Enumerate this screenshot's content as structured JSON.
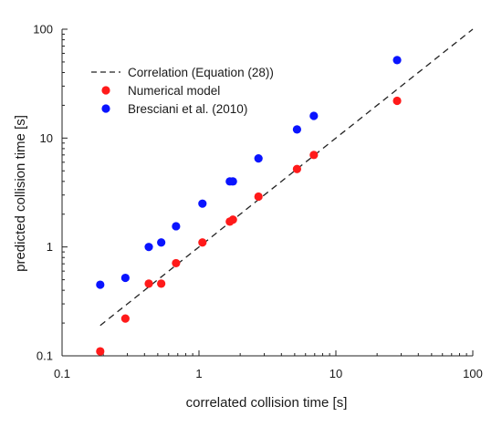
{
  "chart_data": {
    "type": "scatter",
    "title": "",
    "xlabel": "correlated collision time [s]",
    "ylabel": "predicted collision time [s]",
    "xscale": "log",
    "yscale": "log",
    "xlim": [
      0.1,
      100
    ],
    "ylim": [
      0.1,
      100
    ],
    "x_ticks": [
      0.1,
      1,
      10,
      100
    ],
    "y_ticks": [
      0.1,
      1,
      10,
      100
    ],
    "x_tick_labels": [
      "0.1",
      "1",
      "10",
      "100"
    ],
    "y_tick_labels": [
      "0.1",
      "1",
      "10",
      "100"
    ],
    "grid": false,
    "legend_position": "top-left",
    "series": [
      {
        "name": "Correlation (Equation (28))",
        "kind": "line",
        "style": "dashed",
        "color": "#222222",
        "points": [
          [
            0.19,
            0.19
          ],
          [
            100,
            100
          ]
        ]
      },
      {
        "name": "Numerical model",
        "kind": "scatter",
        "color": "#ff1a1a",
        "points": [
          [
            0.19,
            0.11
          ],
          [
            0.29,
            0.22
          ],
          [
            0.43,
            0.46
          ],
          [
            0.53,
            0.46
          ],
          [
            0.68,
            0.71
          ],
          [
            1.06,
            1.1
          ],
          [
            1.68,
            1.71
          ],
          [
            1.77,
            1.78
          ],
          [
            2.72,
            2.9
          ],
          [
            5.2,
            5.2
          ],
          [
            6.9,
            7.0
          ],
          [
            28,
            22
          ]
        ]
      },
      {
        "name": "Bresciani et al. (2010)",
        "kind": "scatter",
        "color": "#0a14ff",
        "points": [
          [
            0.19,
            0.45
          ],
          [
            0.29,
            0.52
          ],
          [
            0.43,
            1.0
          ],
          [
            0.53,
            1.1
          ],
          [
            0.68,
            1.55
          ],
          [
            1.06,
            2.5
          ],
          [
            1.68,
            4.0
          ],
          [
            1.77,
            4.0
          ],
          [
            2.72,
            6.5
          ],
          [
            5.2,
            12
          ],
          [
            6.9,
            16
          ],
          [
            28,
            52
          ]
        ]
      }
    ]
  }
}
